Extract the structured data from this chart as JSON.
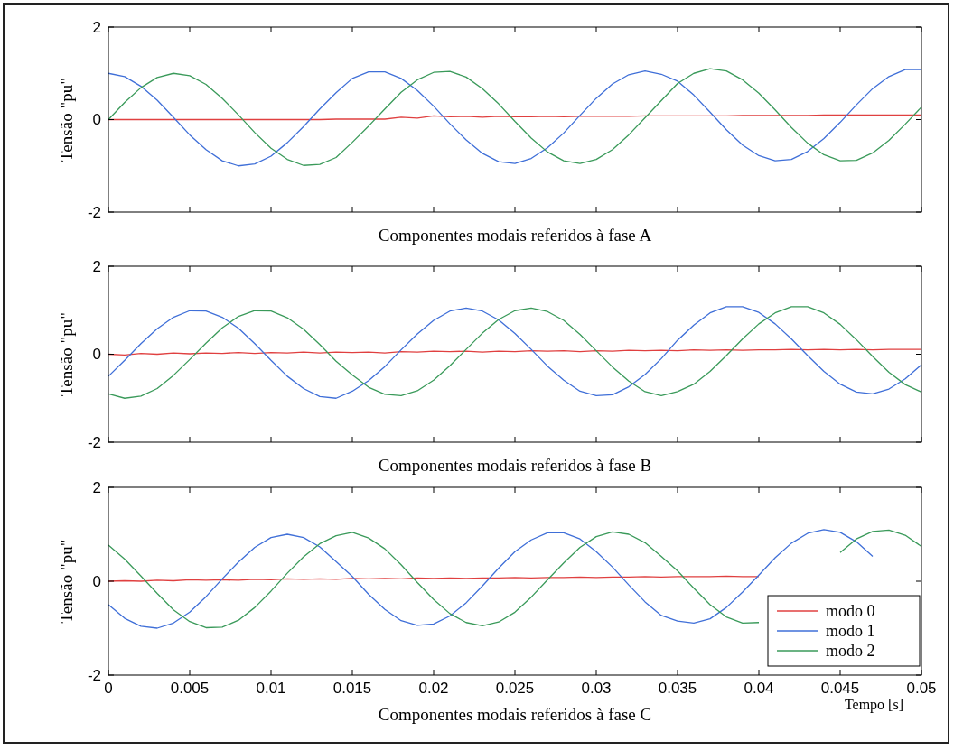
{
  "chart_data": [
    {
      "type": "line",
      "title": "Componentes modais referidos à fase A",
      "ylabel": "Tensão \"pu\"",
      "xlim": [
        0,
        0.05
      ],
      "ylim": [
        -2,
        2
      ],
      "xticks": [
        0,
        0.005,
        0.01,
        0.015,
        0.02,
        0.025,
        0.03,
        0.035,
        0.04,
        0.045,
        0.05
      ],
      "yticks": [
        -2,
        0,
        2
      ],
      "tick_labels": "y",
      "grid": false,
      "legend": false,
      "x": [
        0,
        0.001,
        0.002,
        0.003,
        0.004,
        0.005,
        0.006,
        0.007,
        0.008,
        0.009,
        0.01,
        0.011,
        0.012,
        0.013,
        0.014,
        0.015,
        0.016,
        0.017,
        0.018,
        0.019,
        0.02,
        0.021,
        0.022,
        0.023,
        0.024,
        0.025,
        0.026,
        0.027,
        0.028,
        0.029,
        0.03,
        0.031,
        0.032,
        0.033,
        0.034,
        0.035,
        0.036,
        0.037,
        0.038,
        0.039,
        0.04,
        0.041,
        0.042,
        0.043,
        0.044,
        0.045,
        0.046,
        0.047,
        0.048,
        0.049,
        0.05
      ],
      "series": [
        {
          "color": "#e04040",
          "values": [
            0,
            0,
            0,
            0,
            0,
            0,
            0,
            0,
            0,
            0,
            0,
            0,
            0,
            0,
            0.01,
            0.01,
            0.01,
            0.01,
            0.05,
            0.03,
            0.08,
            0.06,
            0.07,
            0.05,
            0.07,
            0.06,
            0.06,
            0.07,
            0.06,
            0.07,
            0.07,
            0.07,
            0.07,
            0.08,
            0.08,
            0.08,
            0.08,
            0.08,
            0.08,
            0.09,
            0.09,
            0.09,
            0.09,
            0.09,
            0.1,
            0.1,
            0.1,
            0.1,
            0.1,
            0.1,
            0.1
          ]
        },
        {
          "color": "#3f6fd8",
          "values": [
            1,
            0.93,
            0.72,
            0.42,
            0.05,
            -0.33,
            -0.65,
            -0.89,
            -1.0,
            -0.96,
            -0.79,
            -0.5,
            -0.15,
            0.23,
            0.58,
            0.89,
            1.03,
            1.03,
            0.89,
            0.63,
            0.29,
            -0.09,
            -0.44,
            -0.73,
            -0.91,
            -0.95,
            -0.84,
            -0.61,
            -0.29,
            0.09,
            0.46,
            0.77,
            0.97,
            1.05,
            0.98,
            0.83,
            0.53,
            0.16,
            -0.22,
            -0.55,
            -0.78,
            -0.89,
            -0.86,
            -0.69,
            -0.41,
            -0.06,
            0.32,
            0.67,
            0.93,
            1.08,
            1.08
          ]
        },
        {
          "color": "#3a9a5a",
          "values": [
            0,
            0.37,
            0.69,
            0.91,
            1.0,
            0.95,
            0.76,
            0.46,
            0.1,
            -0.28,
            -0.62,
            -0.86,
            -0.99,
            -0.97,
            -0.82,
            -0.49,
            -0.14,
            0.23,
            0.59,
            0.86,
            1.02,
            1.04,
            0.92,
            0.67,
            0.34,
            -0.04,
            -0.4,
            -0.7,
            -0.89,
            -0.95,
            -0.86,
            -0.65,
            -0.33,
            0.04,
            0.41,
            0.78,
            1.0,
            1.1,
            1.05,
            0.86,
            0.57,
            0.21,
            -0.17,
            -0.51,
            -0.76,
            -0.89,
            -0.88,
            -0.72,
            -0.45,
            -0.1,
            0.27
          ]
        }
      ]
    },
    {
      "type": "line",
      "title": "Componentes modais referidos à fase B",
      "ylabel": "Tensão \"pu\"",
      "xlim": [
        0,
        0.05
      ],
      "ylim": [
        -2,
        2
      ],
      "xticks": [
        0,
        0.005,
        0.01,
        0.015,
        0.02,
        0.025,
        0.03,
        0.035,
        0.04,
        0.045,
        0.05
      ],
      "yticks": [
        -2,
        0,
        2
      ],
      "tick_labels": "y",
      "grid": false,
      "legend": false,
      "x": [
        0,
        0.001,
        0.002,
        0.003,
        0.004,
        0.005,
        0.006,
        0.007,
        0.008,
        0.009,
        0.01,
        0.011,
        0.012,
        0.013,
        0.014,
        0.015,
        0.016,
        0.017,
        0.018,
        0.019,
        0.02,
        0.021,
        0.022,
        0.023,
        0.024,
        0.025,
        0.026,
        0.027,
        0.028,
        0.029,
        0.03,
        0.031,
        0.032,
        0.033,
        0.034,
        0.035,
        0.036,
        0.037,
        0.038,
        0.039,
        0.04,
        0.041,
        0.042,
        0.043,
        0.044,
        0.045,
        0.046,
        0.047,
        0.048,
        0.049,
        0.05
      ],
      "series": [
        {
          "color": "#e04040",
          "values": [
            0,
            -0.02,
            0.02,
            0,
            0.03,
            0.01,
            0.03,
            0.02,
            0.04,
            0.02,
            0.04,
            0.03,
            0.05,
            0.03,
            0.05,
            0.04,
            0.05,
            0.03,
            0.06,
            0.05,
            0.07,
            0.06,
            0.07,
            0.05,
            0.07,
            0.06,
            0.08,
            0.07,
            0.08,
            0.06,
            0.08,
            0.07,
            0.09,
            0.08,
            0.09,
            0.08,
            0.1,
            0.09,
            0.1,
            0.09,
            0.1,
            0.1,
            0.11,
            0.1,
            0.11,
            0.1,
            0.11,
            0.1,
            0.11,
            0.11,
            0.11
          ]
        },
        {
          "color": "#3f6fd8",
          "values": [
            -0.5,
            -0.14,
            0.24,
            0.58,
            0.84,
            0.99,
            0.98,
            0.84,
            0.59,
            0.24,
            -0.14,
            -0.5,
            -0.78,
            -0.96,
            -1.0,
            -0.84,
            -0.6,
            -0.28,
            0.1,
            0.46,
            0.77,
            0.98,
            1.05,
            0.98,
            0.78,
            0.47,
            0.11,
            -0.27,
            -0.59,
            -0.84,
            -0.94,
            -0.92,
            -0.74,
            -0.46,
            -0.1,
            0.32,
            0.66,
            0.94,
            1.08,
            1.08,
            0.95,
            0.69,
            0.35,
            -0.03,
            -0.39,
            -0.68,
            -0.86,
            -0.9,
            -0.79,
            -0.56,
            -0.24
          ]
        },
        {
          "color": "#3a9a5a",
          "values": [
            -0.9,
            -1.0,
            -0.95,
            -0.78,
            -0.48,
            -0.12,
            0.25,
            0.6,
            0.86,
            0.99,
            0.98,
            0.83,
            0.57,
            0.22,
            -0.16,
            -0.47,
            -0.75,
            -0.91,
            -0.94,
            -0.83,
            -0.59,
            -0.26,
            0.11,
            0.48,
            0.79,
            0.99,
            1.05,
            0.97,
            0.77,
            0.45,
            0.08,
            -0.29,
            -0.61,
            -0.85,
            -0.94,
            -0.85,
            -0.68,
            -0.39,
            -0.03,
            0.35,
            0.69,
            0.94,
            1.08,
            1.08,
            0.94,
            0.68,
            0.33,
            -0.05,
            -0.41,
            -0.69,
            -0.86
          ]
        }
      ]
    },
    {
      "type": "line",
      "title": "Componentes modais referidos à fase C",
      "xlabel": "Tempo [s]",
      "ylabel": "Tensão \"pu\"",
      "xlim": [
        0,
        0.05
      ],
      "ylim": [
        -2,
        2
      ],
      "xticks": [
        0,
        0.005,
        0.01,
        0.015,
        0.02,
        0.025,
        0.03,
        0.035,
        0.04,
        0.045,
        0.05
      ],
      "yticks": [
        -2,
        0,
        2
      ],
      "grid": false,
      "legend": "bottom right",
      "x": [
        0,
        0.001,
        0.002,
        0.003,
        0.004,
        0.005,
        0.006,
        0.007,
        0.008,
        0.009,
        0.01,
        0.011,
        0.012,
        0.013,
        0.014,
        0.015,
        0.016,
        0.017,
        0.018,
        0.019,
        0.02,
        0.021,
        0.022,
        0.023,
        0.024,
        0.025,
        0.026,
        0.027,
        0.028,
        0.029,
        0.03,
        0.031,
        0.032,
        0.033,
        0.034,
        0.035,
        0.036,
        0.037,
        0.038,
        0.039,
        0.04,
        0.041,
        0.042,
        0.043,
        0.044,
        0.045,
        0.046,
        0.047,
        0.048,
        0.049,
        0.05
      ],
      "series": [
        {
          "name": "modo 0",
          "color": "#e04040",
          "values": [
            0,
            0.01,
            0,
            0.02,
            0.01,
            0.03,
            0.02,
            0.03,
            0.02,
            0.04,
            0.03,
            0.05,
            0.04,
            0.05,
            0.04,
            0.06,
            0.05,
            0.06,
            0.05,
            0.07,
            0.06,
            0.07,
            0.06,
            0.07,
            0.07,
            0.08,
            0.07,
            0.08,
            0.08,
            0.09,
            0.08,
            0.09,
            0.09,
            0.1,
            0.09,
            0.1,
            0.1,
            0.1,
            0.11,
            0.1,
            0.1,
            null,
            null,
            null,
            null,
            null,
            null,
            null,
            null,
            null,
            null
          ]
        },
        {
          "name": "modo 1",
          "color": "#3f6fd8",
          "values": [
            -0.5,
            -0.79,
            -0.96,
            -1.0,
            -0.89,
            -0.66,
            -0.33,
            0.05,
            0.41,
            0.72,
            0.93,
            1.0,
            0.93,
            0.73,
            0.42,
            0.1,
            -0.28,
            -0.6,
            -0.84,
            -0.94,
            -0.91,
            -0.74,
            -0.46,
            -0.1,
            0.28,
            0.63,
            0.88,
            1.03,
            1.03,
            0.9,
            0.63,
            0.3,
            -0.08,
            -0.44,
            -0.73,
            -0.85,
            -0.89,
            -0.8,
            -0.56,
            -0.23,
            0.13,
            0.5,
            0.81,
            1.02,
            1.1,
            1.04,
            0.84,
            0.53,
            null,
            null,
            null
          ]
        },
        {
          "name": "modo 2",
          "color": "#3a9a5a",
          "values": [
            0.77,
            0.47,
            0.11,
            -0.26,
            -0.61,
            -0.86,
            -0.99,
            -0.98,
            -0.83,
            -0.56,
            -0.21,
            0.17,
            0.52,
            0.8,
            0.97,
            1.04,
            0.92,
            0.69,
            0.35,
            -0.03,
            -0.39,
            -0.69,
            -0.88,
            -0.95,
            -0.87,
            -0.66,
            -0.34,
            0.03,
            0.39,
            0.72,
            0.95,
            1.05,
            1.0,
            0.82,
            0.53,
            0.22,
            -0.15,
            -0.5,
            -0.76,
            -0.89,
            -0.88,
            null,
            null,
            null,
            null,
            0.61,
            0.9,
            1.06,
            1.09,
            0.98,
            0.74
          ]
        }
      ]
    }
  ]
}
